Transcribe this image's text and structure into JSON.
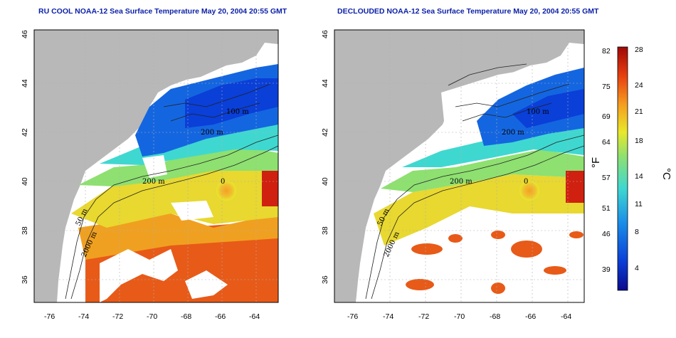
{
  "panels": [
    {
      "title": "RU COOL NOAA-12 Sea Surface Temperature May 20, 2004 20:55 GMT",
      "contour_labels": [
        "200 m",
        "2000 m",
        "50 m",
        "100 m",
        "200 m",
        "0"
      ]
    },
    {
      "title": "DECLOUDED NOAA-12 Sea Surface Temperature May 20, 2004 20:55 GMT",
      "contour_labels": [
        "200 m",
        "2000 m",
        "50 m",
        "100 m",
        "200 m",
        "0"
      ]
    }
  ],
  "axes": {
    "x_ticks": [
      "-76",
      "-74",
      "-72",
      "-70",
      "-68",
      "-66",
      "-64"
    ],
    "y_ticks": [
      "36",
      "38",
      "40",
      "42",
      "44",
      "46"
    ]
  },
  "colorbar": {
    "fahrenheit_label": "°F",
    "celsius_label": "°C",
    "fahrenheit_ticks": [
      "82",
      "75",
      "69",
      "64",
      "57",
      "51",
      "46",
      "39"
    ],
    "celsius_ticks": [
      "28",
      "24",
      "21",
      "18",
      "14",
      "11",
      "8",
      "4"
    ],
    "colors": [
      "#0a0a8c",
      "#0a3fd8",
      "#1a8fe8",
      "#3fd8d0",
      "#8ee070",
      "#e8e82a",
      "#f5a020",
      "#e84010",
      "#a00808"
    ]
  },
  "colors": {
    "land": "#b8b8b8",
    "title": "#0a1fa8"
  }
}
